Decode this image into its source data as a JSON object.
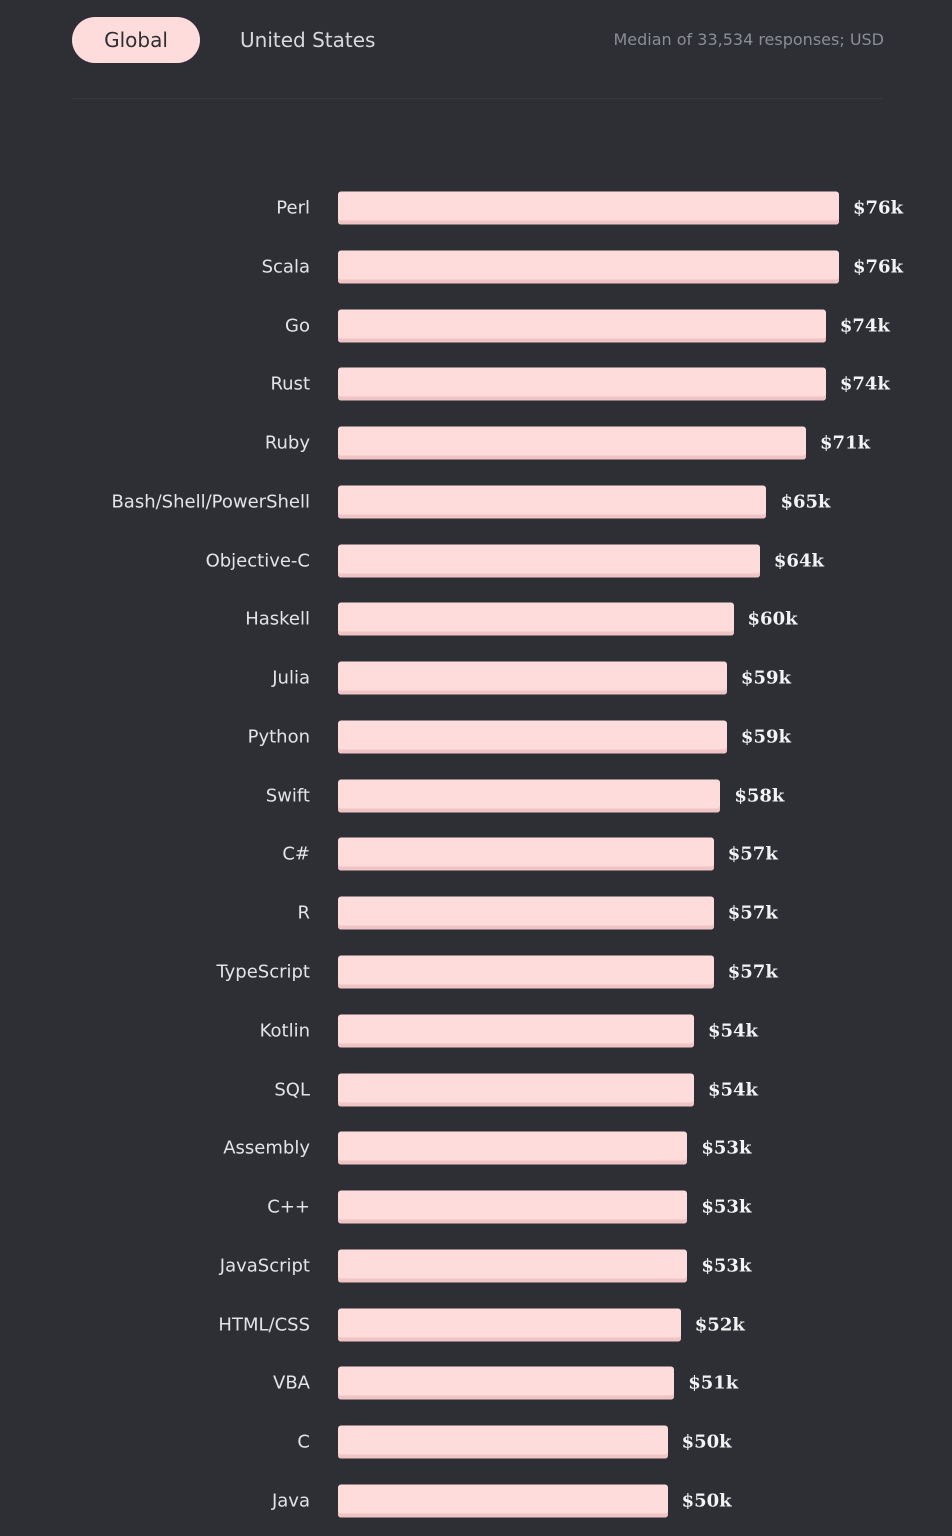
{
  "tabs": [
    {
      "label": "Global",
      "active": true
    },
    {
      "label": "United States",
      "active": false
    }
  ],
  "note": "Median of 33,534 responses; USD",
  "colors": {
    "background": "#2d2f34",
    "bar": "#fedcdb",
    "active_tab": "#fedcdb"
  },
  "chart_data": {
    "type": "bar",
    "orientation": "horizontal",
    "categories": [
      "Perl",
      "Scala",
      "Go",
      "Rust",
      "Ruby",
      "Bash/Shell/PowerShell",
      "Objective-C",
      "Haskell",
      "Julia",
      "Python",
      "Swift",
      "C#",
      "R",
      "TypeScript",
      "Kotlin",
      "SQL",
      "Assembly",
      "C++",
      "JavaScript",
      "HTML/CSS",
      "VBA",
      "C",
      "Java"
    ],
    "values": [
      76,
      76,
      74,
      74,
      71,
      65,
      64,
      60,
      59,
      59,
      58,
      57,
      57,
      57,
      54,
      54,
      53,
      53,
      53,
      52,
      51,
      50,
      50
    ],
    "data_labels": [
      "$76k",
      "$76k",
      "$74k",
      "$74k",
      "$71k",
      "$65k",
      "$64k",
      "$60k",
      "$59k",
      "$59k",
      "$58k",
      "$57k",
      "$57k",
      "$57k",
      "$54k",
      "$54k",
      "$53k",
      "$53k",
      "$53k",
      "$52k",
      "$51k",
      "$50k",
      "$50k"
    ],
    "unit": "thousand USD",
    "grid": false
  }
}
